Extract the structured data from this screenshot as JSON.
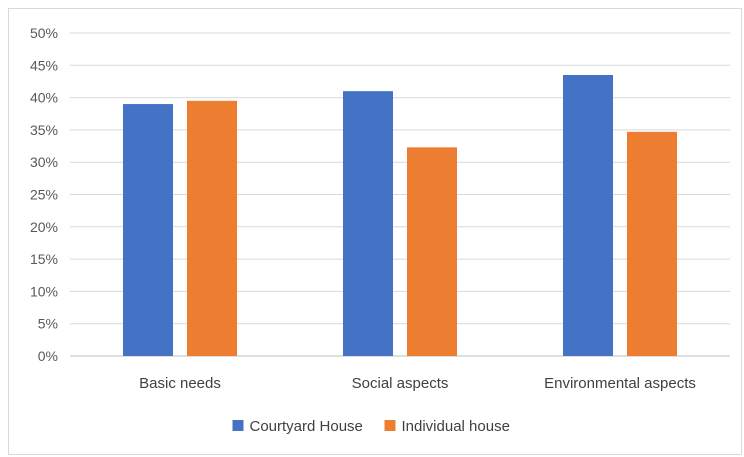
{
  "chart_data": {
    "type": "bar",
    "categories": [
      "Basic needs",
      "Social aspects",
      "Environmental aspects"
    ],
    "series": [
      {
        "name": "Courtyard House",
        "values": [
          39,
          41,
          43.5
        ],
        "color": "#4472C4"
      },
      {
        "name": "Individual house",
        "values": [
          39.5,
          32.3,
          34.7
        ],
        "color": "#ED7D31"
      }
    ],
    "ylim": [
      0,
      50
    ],
    "yticks": [
      0,
      5,
      10,
      15,
      20,
      25,
      30,
      35,
      40,
      45,
      50
    ],
    "ytick_labels": [
      "0%",
      "5%",
      "10%",
      "15%",
      "20%",
      "25%",
      "30%",
      "35%",
      "40%",
      "45%",
      "50%"
    ],
    "grid": true,
    "legend_position": "bottom"
  }
}
